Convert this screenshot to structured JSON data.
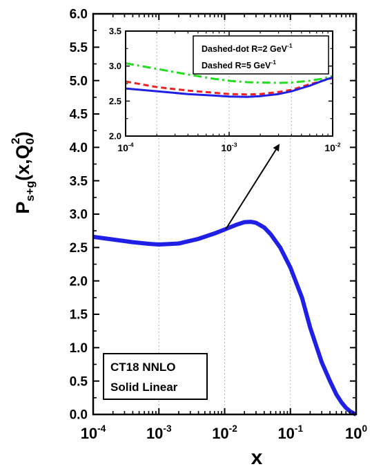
{
  "chart_data": [
    {
      "type": "line",
      "xscale": "log",
      "xlim": [
        0.0001,
        1
      ],
      "ylim": [
        0.0,
        6.0
      ],
      "x_tick_labels": [
        {
          "base": "10",
          "exp": "-4",
          "value": 0.0001
        },
        {
          "base": "10",
          "exp": "-3",
          "value": 0.001
        },
        {
          "base": "10",
          "exp": "-2",
          "value": 0.01
        },
        {
          "base": "10",
          "exp": "-1",
          "value": 0.1
        },
        {
          "base": "10",
          "exp": "0",
          "value": 1
        }
      ],
      "y_tick_labels": [
        "0.0",
        "0.5",
        "1.0",
        "1.5",
        "2.0",
        "2.5",
        "3.0",
        "3.5",
        "4.0",
        "4.5",
        "5.0",
        "5.5",
        "6.0"
      ],
      "xlabel": "x",
      "ylabel": {
        "main": "P",
        "sub": "s+g",
        "open": "(x,Q",
        "q_sub": "0",
        "q_sup": "2",
        "close": ")"
      },
      "annotation": {
        "line1": "CT18 NNLO",
        "line2": "Solid Linear"
      },
      "gridlines_x": [
        0.001,
        0.01,
        0.1
      ],
      "series": [
        {
          "style": "solid",
          "color": "#1f1fe6",
          "x": [
            0.0001,
            0.0002,
            0.0004,
            0.0007,
            0.001,
            0.002,
            0.004,
            0.007,
            0.01,
            0.015,
            0.02,
            0.025,
            0.03,
            0.04,
            0.05,
            0.07,
            0.1,
            0.15,
            0.2,
            0.3,
            0.4,
            0.5,
            0.6,
            0.7,
            0.8,
            0.9,
            1.0
          ],
          "y": [
            2.66,
            2.62,
            2.58,
            2.555,
            2.545,
            2.56,
            2.63,
            2.71,
            2.77,
            2.84,
            2.88,
            2.885,
            2.87,
            2.8,
            2.7,
            2.5,
            2.2,
            1.75,
            1.3,
            0.78,
            0.5,
            0.3,
            0.18,
            0.1,
            0.05,
            0.02,
            0.0
          ]
        }
      ]
    },
    {
      "type": "line",
      "xscale": "log",
      "xlim": [
        0.0001,
        0.01
      ],
      "ylim": [
        2.0,
        3.5
      ],
      "x_tick_labels": [
        {
          "base": "10",
          "exp": "-4",
          "value": 0.0001
        },
        {
          "base": "10",
          "exp": "-3",
          "value": 0.001
        },
        {
          "base": "10",
          "exp": "-2",
          "value": 0.01
        }
      ],
      "y_tick_labels": [
        "2.0",
        "2.5",
        "3.0",
        "3.5"
      ],
      "gridlines_x": [
        0.0002,
        0.001,
        0.004
      ],
      "legend": [
        {
          "text": "Dashed-dot R=2 GeV",
          "sup": "-1"
        },
        {
          "text": "Dashed R=5 GeV",
          "sup": "-1"
        }
      ],
      "series": [
        {
          "style": "dashdot",
          "color": "#22dd22",
          "x": [
            0.0001,
            0.0002,
            0.0004,
            0.0007,
            0.001,
            0.0015,
            0.002,
            0.003,
            0.004,
            0.006,
            0.008,
            0.01
          ],
          "y": [
            3.04,
            2.96,
            2.88,
            2.82,
            2.79,
            2.77,
            2.765,
            2.76,
            2.765,
            2.79,
            2.82,
            2.86
          ]
        },
        {
          "style": "dashed",
          "color": "#ee2222",
          "x": [
            0.0001,
            0.0002,
            0.0004,
            0.0007,
            0.001,
            0.0015,
            0.002,
            0.003,
            0.004,
            0.006,
            0.008,
            0.01
          ],
          "y": [
            2.78,
            2.7,
            2.65,
            2.62,
            2.6,
            2.595,
            2.6,
            2.63,
            2.66,
            2.74,
            2.79,
            2.83
          ]
        },
        {
          "style": "solid",
          "color": "#1f1fe6",
          "x": [
            0.0001,
            0.0002,
            0.0004,
            0.0007,
            0.001,
            0.0015,
            0.002,
            0.003,
            0.004,
            0.006,
            0.008,
            0.01
          ],
          "y": [
            2.68,
            2.64,
            2.6,
            2.58,
            2.565,
            2.56,
            2.57,
            2.6,
            2.64,
            2.72,
            2.79,
            2.84
          ]
        }
      ]
    }
  ]
}
